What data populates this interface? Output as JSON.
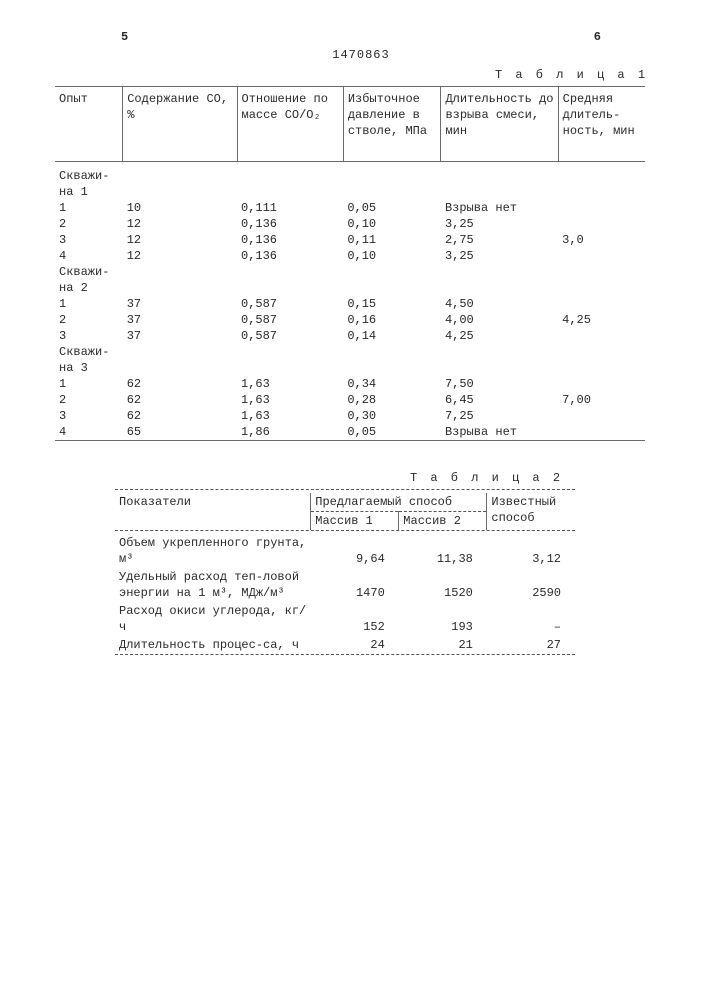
{
  "page_left": "5",
  "doc_number": "1470863",
  "page_right": "6",
  "table1_label": "Т а б л и ц а 1",
  "table2_label": "Т а б л и ц а 2",
  "t1": {
    "headers": {
      "c1": "Опыт",
      "c2": "Содержание CO, %",
      "c3": "Отношение по массе CO/O₂",
      "c4": "Избыточное давление в стволе, МПа",
      "c5": "Длительность до взрыва смеси, мин",
      "c6": "Средняя длитель-ность, мин"
    },
    "sections": [
      {
        "title": "Скважи-на 1",
        "rows": [
          {
            "n": "1",
            "co": "10",
            "ratio": "0,111",
            "p": "0,05",
            "dur": "Взрыва нет",
            "avg": ""
          },
          {
            "n": "2",
            "co": "12",
            "ratio": "0,136",
            "p": "0,10",
            "dur": "3,25",
            "avg": ""
          },
          {
            "n": "3",
            "co": "12",
            "ratio": "0,136",
            "p": "0,11",
            "dur": "2,75",
            "avg": "3,0"
          },
          {
            "n": "4",
            "co": "12",
            "ratio": "0,136",
            "p": "0,10",
            "dur": "3,25",
            "avg": ""
          }
        ]
      },
      {
        "title": "Скважи-на 2",
        "rows": [
          {
            "n": "1",
            "co": "37",
            "ratio": "0,587",
            "p": "0,15",
            "dur": "4,50",
            "avg": ""
          },
          {
            "n": "2",
            "co": "37",
            "ratio": "0,587",
            "p": "0,16",
            "dur": "4,00",
            "avg": "4,25"
          },
          {
            "n": "3",
            "co": "37",
            "ratio": "0,587",
            "p": "0,14",
            "dur": "4,25",
            "avg": ""
          }
        ]
      },
      {
        "title": "Скважи-на 3",
        "rows": [
          {
            "n": "1",
            "co": "62",
            "ratio": "1,63",
            "p": "0,34",
            "dur": "7,50",
            "avg": ""
          },
          {
            "n": "2",
            "co": "62",
            "ratio": "1,63",
            "p": "0,28",
            "dur": "6,45",
            "avg": "7,00"
          },
          {
            "n": "3",
            "co": "62",
            "ratio": "1,63",
            "p": "0,30",
            "dur": "7,25",
            "avg": ""
          },
          {
            "n": "4",
            "co": "65",
            "ratio": "1,86",
            "p": "0,05",
            "dur": "Взрыва нет",
            "avg": ""
          }
        ]
      }
    ]
  },
  "t2": {
    "h_ind": "Показатели",
    "h_prop": "Предлагаемый способ",
    "h_known": "Известный способ",
    "h_m1": "Массив 1",
    "h_m2": "Массив 2",
    "rows": [
      {
        "label": "Объем укрепленного грунта, м³",
        "m1": "9,64",
        "m2": "11,38",
        "k": "3,12"
      },
      {
        "label": "Удельный расход теп-ловой энергии на 1 м³, МДж/м³",
        "m1": "1470",
        "m2": "1520",
        "k": "2590"
      },
      {
        "label": "Расход окиси углерода, кг/ч",
        "m1": "152",
        "m2": "193",
        "k": "–"
      },
      {
        "label": "Длительность процес-са, ч",
        "m1": "24",
        "m2": "21",
        "k": "27"
      }
    ]
  },
  "style": {
    "font": "Courier New, monospace",
    "fontsize_pt": 9,
    "text_color": "#2a2a2a",
    "bg": "#ffffff",
    "rule_color": "#6a6a6a",
    "dash_color": "#555555"
  }
}
